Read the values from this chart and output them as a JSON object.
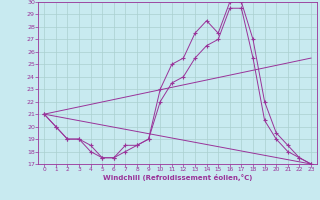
{
  "xlabel": "Windchill (Refroidissement éolien,°C)",
  "background_color": "#c8eaf0",
  "line_color": "#993399",
  "grid_color": "#aad0d0",
  "xlim": [
    -0.5,
    23.5
  ],
  "ylim": [
    17,
    30
  ],
  "xticks": [
    0,
    1,
    2,
    3,
    4,
    5,
    6,
    7,
    8,
    9,
    10,
    11,
    12,
    13,
    14,
    15,
    16,
    17,
    18,
    19,
    20,
    21,
    22,
    23
  ],
  "yticks": [
    17,
    18,
    19,
    20,
    21,
    22,
    23,
    24,
    25,
    26,
    27,
    28,
    29,
    30
  ],
  "line1_x": [
    0,
    1,
    2,
    3,
    4,
    5,
    6,
    7,
    8,
    9,
    10,
    11,
    12,
    13,
    14,
    15,
    16,
    17,
    18,
    19,
    20,
    21,
    22,
    23
  ],
  "line1_y": [
    21.0,
    20.0,
    19.0,
    19.0,
    18.5,
    17.5,
    17.5,
    18.5,
    18.5,
    19.0,
    23.0,
    25.0,
    25.5,
    27.5,
    28.5,
    27.5,
    30.0,
    30.0,
    27.0,
    22.0,
    19.5,
    18.5,
    17.5,
    17.0
  ],
  "line2_x": [
    0,
    1,
    2,
    3,
    4,
    5,
    6,
    7,
    8,
    9,
    10,
    11,
    12,
    13,
    14,
    15,
    16,
    17,
    18,
    19,
    20,
    21,
    22,
    23
  ],
  "line2_y": [
    21.0,
    20.0,
    19.0,
    19.0,
    18.0,
    17.5,
    17.5,
    18.0,
    18.5,
    19.0,
    22.0,
    23.5,
    24.0,
    25.5,
    26.5,
    27.0,
    29.5,
    29.5,
    25.5,
    20.5,
    19.0,
    18.0,
    17.5,
    17.0
  ],
  "line3_x": [
    0,
    23
  ],
  "line3_y": [
    21.0,
    25.5
  ],
  "line4_x": [
    0,
    23
  ],
  "line4_y": [
    21.0,
    17.0
  ]
}
